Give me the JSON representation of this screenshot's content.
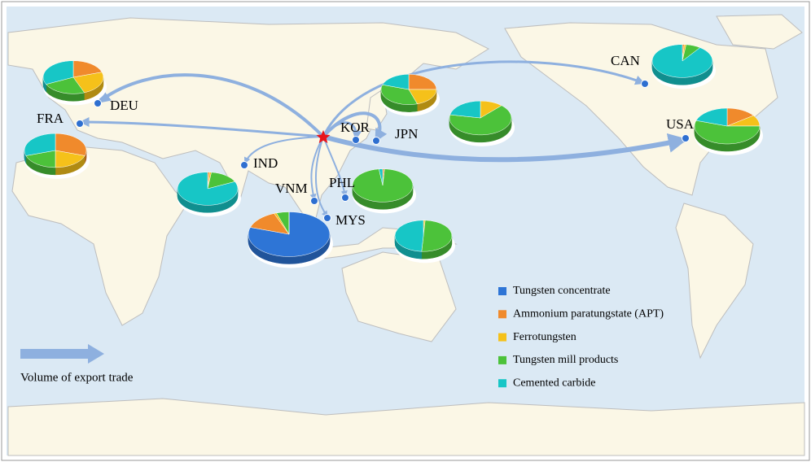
{
  "legend": [
    {
      "label": "Tungsten concentrate",
      "color": "#2e75d6"
    },
    {
      "label": "Ammonium paratungstate (APT)",
      "color": "#f08a2c"
    },
    {
      "label": "Ferrotungsten",
      "color": "#f5c11a"
    },
    {
      "label": "Tungsten mill products",
      "color": "#4cc23a"
    },
    {
      "label": "Cemented carbide",
      "color": "#17c6c6"
    }
  ],
  "arrow_label": "Volume of export trade",
  "countries": [
    {
      "label": "DEU",
      "pie": [
        0,
        20,
        24,
        24,
        32
      ]
    },
    {
      "label": "FRA",
      "pie": [
        0,
        30,
        20,
        20,
        30
      ]
    },
    {
      "label": "KOR",
      "pie": [
        0,
        0,
        12,
        66,
        22
      ]
    },
    {
      "label": "JPN",
      "pie": [
        0,
        25,
        20,
        35,
        20
      ]
    },
    {
      "label": "CAN",
      "pie": [
        0,
        1,
        1,
        8,
        90
      ]
    },
    {
      "label": "USA",
      "pie": [
        0,
        15,
        10,
        55,
        20
      ]
    },
    {
      "label": "IND",
      "pie": [
        0,
        1,
        1,
        16,
        82
      ]
    },
    {
      "label": "VNM",
      "pie": [
        80,
        14,
        1,
        5,
        0
      ]
    },
    {
      "label": "PHL",
      "pie": [
        0,
        1,
        0,
        97,
        2
      ]
    },
    {
      "label": "MYS",
      "pie": [
        0,
        0,
        1,
        50,
        49
      ]
    }
  ]
}
